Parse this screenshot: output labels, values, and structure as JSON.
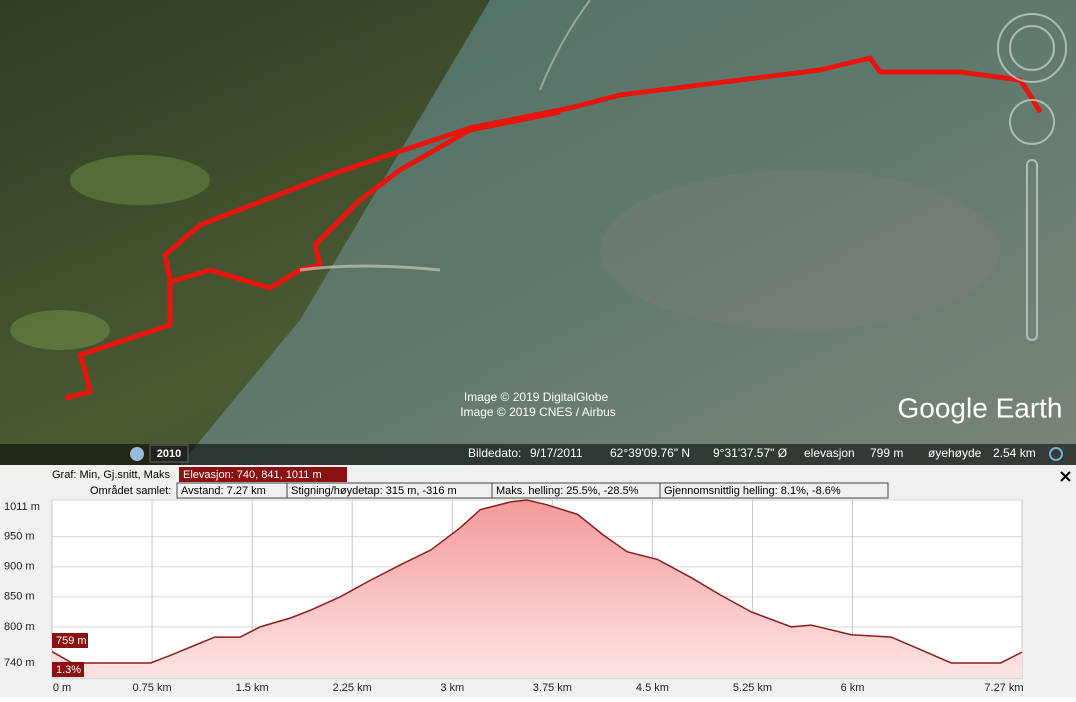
{
  "map": {
    "attribution": [
      "Image © 2019 DigitalGlobe",
      "Image © 2019 CNES / Airbus"
    ],
    "logo": "Google Earth",
    "year": "2010",
    "status": {
      "date_label": "Bildedato:",
      "date": "9/17/2011",
      "lat": "62°39'09.76\" N",
      "lon": "9°31'37.57\" Ø",
      "elev_label": "elevasjon",
      "elev": "799 m",
      "eye_label": "øyehøyde",
      "eye": "2.54 km"
    }
  },
  "profile": {
    "graph_label": "Graf: Min, Gj.snitt, Maks",
    "elevation": "Elevasjon: 740, 841, 1011 m",
    "area_label": "Området samlet:",
    "stats": [
      "Avstand: 7.27 km",
      "Stigning/høydetap: 315 m, -316 m",
      "Maks. helling: 25.5%, -28.5%",
      "Gjennomsnittlig helling: 8.1%, -8.6%"
    ],
    "cursor": {
      "elevation": "759 m",
      "slope": "1.3%"
    },
    "chart_data": {
      "type": "area",
      "color": "#8b1c1c",
      "x": [
        0,
        0.15,
        0.74,
        0.89,
        1.11,
        1.22,
        1.41,
        1.56,
        1.79,
        1.94,
        2.16,
        2.39,
        2.61,
        2.84,
        3.06,
        3.21,
        3.44,
        3.56,
        3.71,
        3.94,
        4.13,
        4.31,
        4.54,
        4.79,
        5.01,
        5.24,
        5.54,
        5.69,
        5.99,
        6.29,
        6.51,
        6.74,
        7.11,
        7.27
      ],
      "values": [
        759,
        740,
        740,
        753,
        773,
        783,
        783,
        800,
        815,
        828,
        850,
        878,
        903,
        928,
        965,
        995,
        1008,
        1011,
        1003,
        987,
        953,
        925,
        912,
        882,
        853,
        825,
        800,
        803,
        787,
        783,
        762,
        740,
        740,
        758
      ],
      "xlim": [
        0,
        7.27
      ],
      "ylim": [
        715,
        1011
      ],
      "xticks": [
        {
          "value": 0,
          "label": "0 m"
        },
        {
          "value": 0.75,
          "label": "0.75 km"
        },
        {
          "value": 1.5,
          "label": "1.5 km"
        },
        {
          "value": 2.25,
          "label": "2.25 km"
        },
        {
          "value": 3,
          "label": "3 km"
        },
        {
          "value": 3.75,
          "label": "3.75 km"
        },
        {
          "value": 4.5,
          "label": "4.5 km"
        },
        {
          "value": 5.25,
          "label": "5.25 km"
        },
        {
          "value": 6,
          "label": "6 km"
        },
        {
          "value": 7.27,
          "label": "7.27 km"
        }
      ],
      "yticks": [
        {
          "value": 740,
          "label": "740 m"
        },
        {
          "value": 800,
          "label": "800 m"
        },
        {
          "value": 850,
          "label": "850 m"
        },
        {
          "value": 900,
          "label": "900 m"
        },
        {
          "value": 950,
          "label": "950 m"
        },
        {
          "value": 1011,
          "label": "1011 m"
        }
      ],
      "grid": true
    }
  }
}
